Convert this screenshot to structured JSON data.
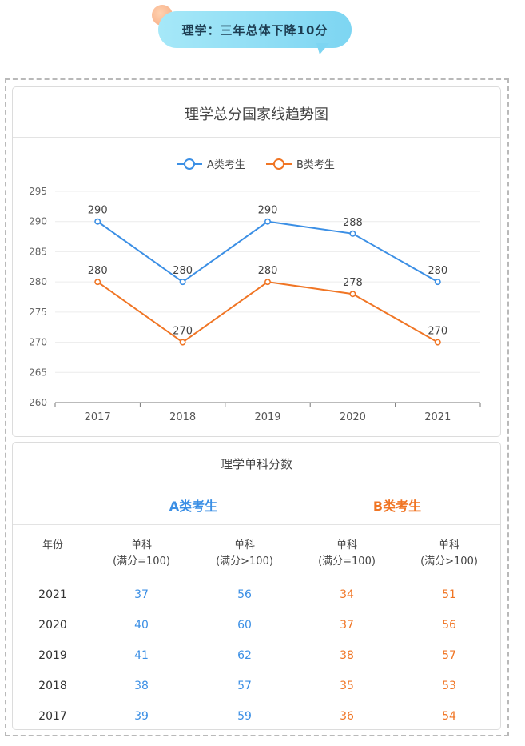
{
  "header": {
    "bubble_text": "理学：三年总体下降10分"
  },
  "chart_card": {
    "title": "理学总分国家线趋势图"
  },
  "chart_data": {
    "type": "line",
    "title": "理学总分国家线趋势图",
    "categories": [
      "2017",
      "2018",
      "2019",
      "2020",
      "2021"
    ],
    "series": [
      {
        "name": "A类考生",
        "values": [
          290,
          280,
          290,
          288,
          280
        ],
        "color": "#3b8fe5"
      },
      {
        "name": "B类考生",
        "values": [
          280,
          270,
          280,
          278,
          270
        ],
        "color": "#f07524"
      }
    ],
    "ylim": [
      260,
      295
    ],
    "yticks": [
      260,
      265,
      270,
      275,
      280,
      285,
      290,
      295
    ],
    "legend": "top-center",
    "grid": true
  },
  "table_card": {
    "title": "理学单科分数",
    "group_a": "A类考生",
    "group_b": "B类考生",
    "col_year": "年份",
    "col_sub1_line1": "单科",
    "col_sub1_line2": "(满分=100)",
    "col_sub2_line1": "单科",
    "col_sub2_line2": "(满分>100)",
    "rows": [
      {
        "year": "2021",
        "a1": "37",
        "a2": "56",
        "b1": "34",
        "b2": "51"
      },
      {
        "year": "2020",
        "a1": "40",
        "a2": "60",
        "b1": "37",
        "b2": "56"
      },
      {
        "year": "2019",
        "a1": "41",
        "a2": "62",
        "b1": "38",
        "b2": "57"
      },
      {
        "year": "2018",
        "a1": "38",
        "a2": "57",
        "b1": "35",
        "b2": "53"
      },
      {
        "year": "2017",
        "a1": "39",
        "a2": "59",
        "b1": "36",
        "b2": "54"
      }
    ]
  },
  "colors": {
    "a": "#3b8fe5",
    "b": "#f07524"
  }
}
